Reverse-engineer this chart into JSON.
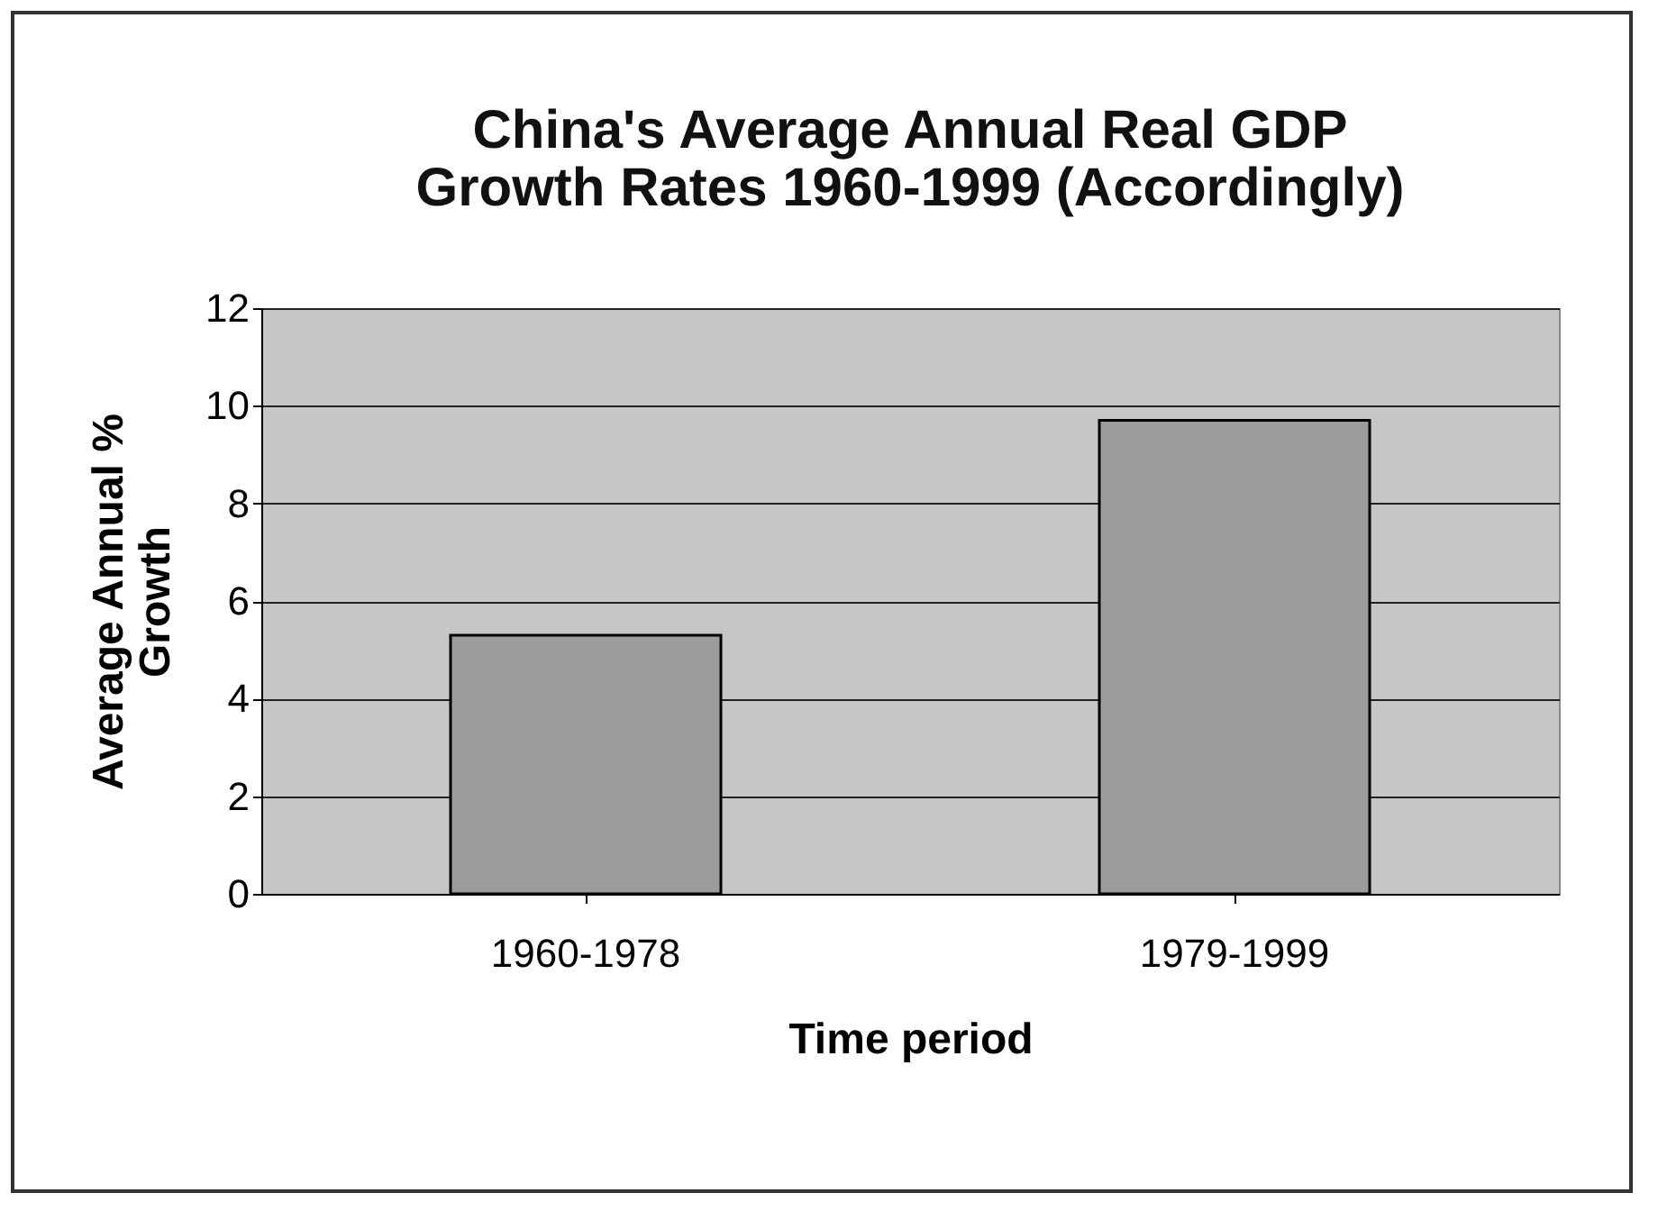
{
  "chart_data": {
    "type": "bar",
    "title": [
      "China's Average Annual Real GDP",
      "Growth Rates 1960-1999 (Accordingly)"
    ],
    "xlabel": "Time period",
    "ylabel": [
      "Average Annual %",
      "Growth"
    ],
    "categories": [
      "1960-1978",
      "1979-1999"
    ],
    "values": [
      5.3,
      9.7
    ],
    "color": "#9c9c9c",
    "ylim": [
      0,
      12
    ],
    "yticks": [
      0,
      2,
      4,
      6,
      8,
      10,
      12
    ],
    "grid": "y"
  }
}
